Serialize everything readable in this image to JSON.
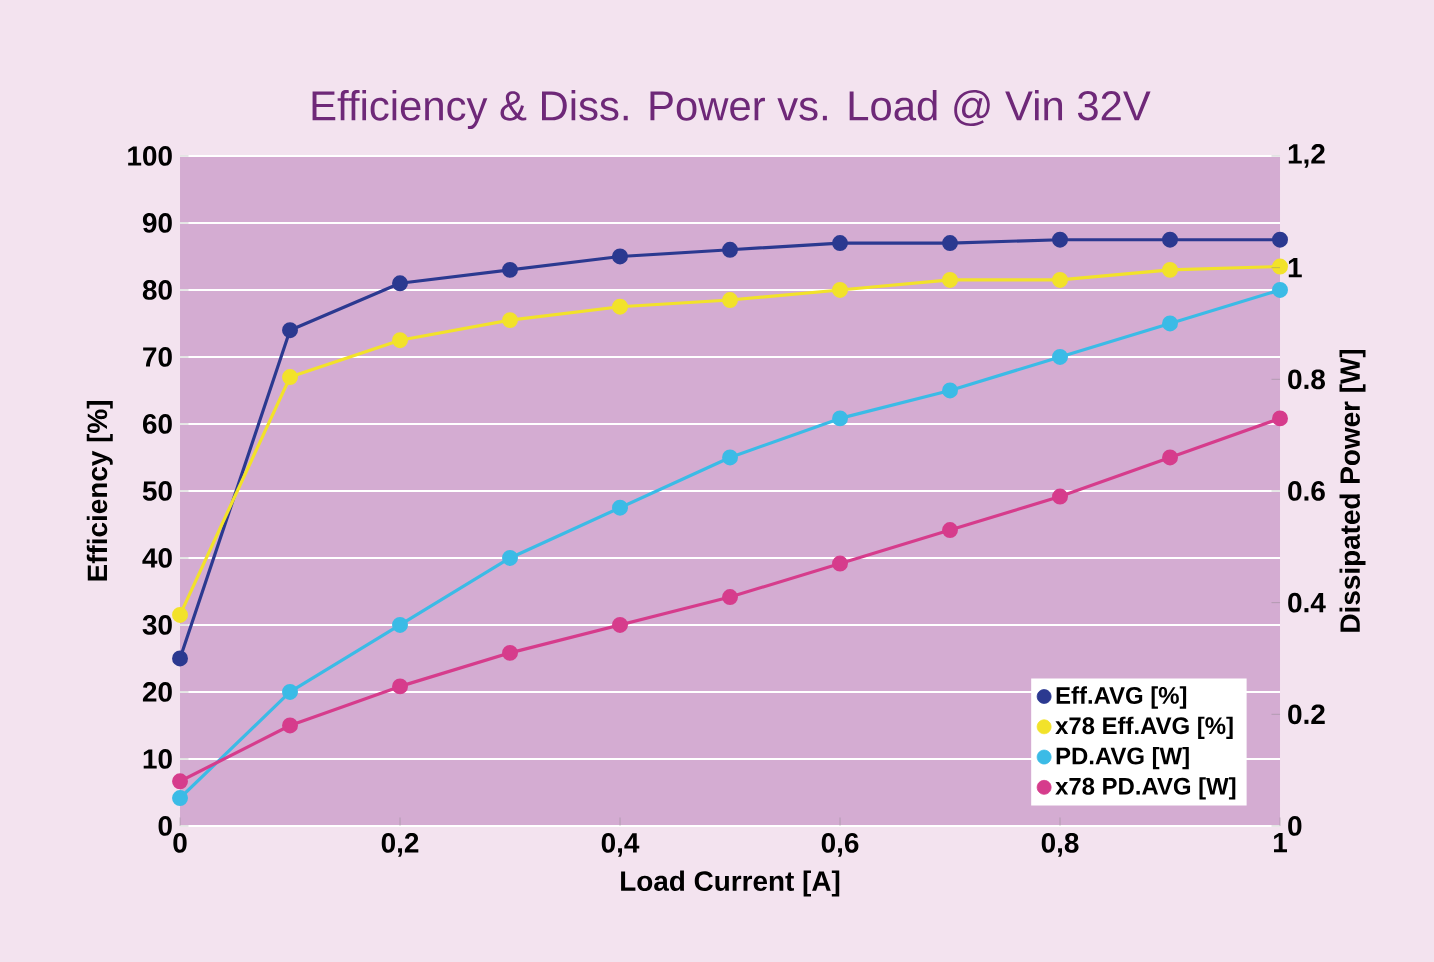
{
  "chart_data": {
    "type": "line",
    "title": "Efficiency & Diss. Power vs. Load @ Vin 32V",
    "xlabel": "Load Current [A]",
    "ylabel": "Efficiency [%]",
    "y2label": "Dissipated Power [W]",
    "x": [
      0,
      0.1,
      0.2,
      0.3,
      0.4,
      0.5,
      0.6,
      0.7,
      0.8,
      0.9,
      1
    ],
    "series": [
      {
        "name": "Eff.AVG [%]",
        "color": "#2b3990",
        "values": [
          25,
          74,
          81,
          83,
          85,
          86,
          87,
          87,
          87.5,
          87.5,
          87.5
        ]
      },
      {
        "name": "x78 Eff.AVG [%]",
        "color": "#f2e22a",
        "values": [
          31.5,
          67,
          72.5,
          75.5,
          77.5,
          78.5,
          80,
          81.5,
          81.5,
          83,
          83.5
        ]
      },
      {
        "name": "PD.AVG [W]",
        "color": "#3bbbe6",
        "axis": "y2",
        "values": [
          0.05,
          0.24,
          0.36,
          0.48,
          0.57,
          0.66,
          0.73,
          0.78,
          0.84,
          0.9,
          0.96
        ]
      },
      {
        "name": "x78 PD.AVG [W]",
        "color": "#d63c8c",
        "axis": "y2",
        "values": [
          0.08,
          0.18,
          0.25,
          0.31,
          0.36,
          0.41,
          0.47,
          0.53,
          0.59,
          0.66,
          0.73
        ]
      }
    ],
    "xlim": [
      0,
      1
    ],
    "xticks": [
      0,
      {
        "value": 0.2,
        "label": "0,2"
      },
      {
        "value": 0.4,
        "label": "0,4"
      },
      {
        "value": 0.6,
        "label": "0,6"
      },
      {
        "value": 0.8,
        "label": "0,8"
      },
      1
    ],
    "ylim": [
      0,
      100
    ],
    "yticks": [
      0,
      10,
      20,
      30,
      40,
      50,
      60,
      70,
      80,
      90,
      100
    ],
    "y2lim": [
      0,
      1.2
    ],
    "y2ticks": [
      0,
      0.2,
      0.4,
      0.6,
      0.8,
      1,
      {
        "value": 1.2,
        "label": "1,2"
      }
    ],
    "grid": "y",
    "legend": "bottom right",
    "marker": "circle",
    "line_style": "solid"
  }
}
